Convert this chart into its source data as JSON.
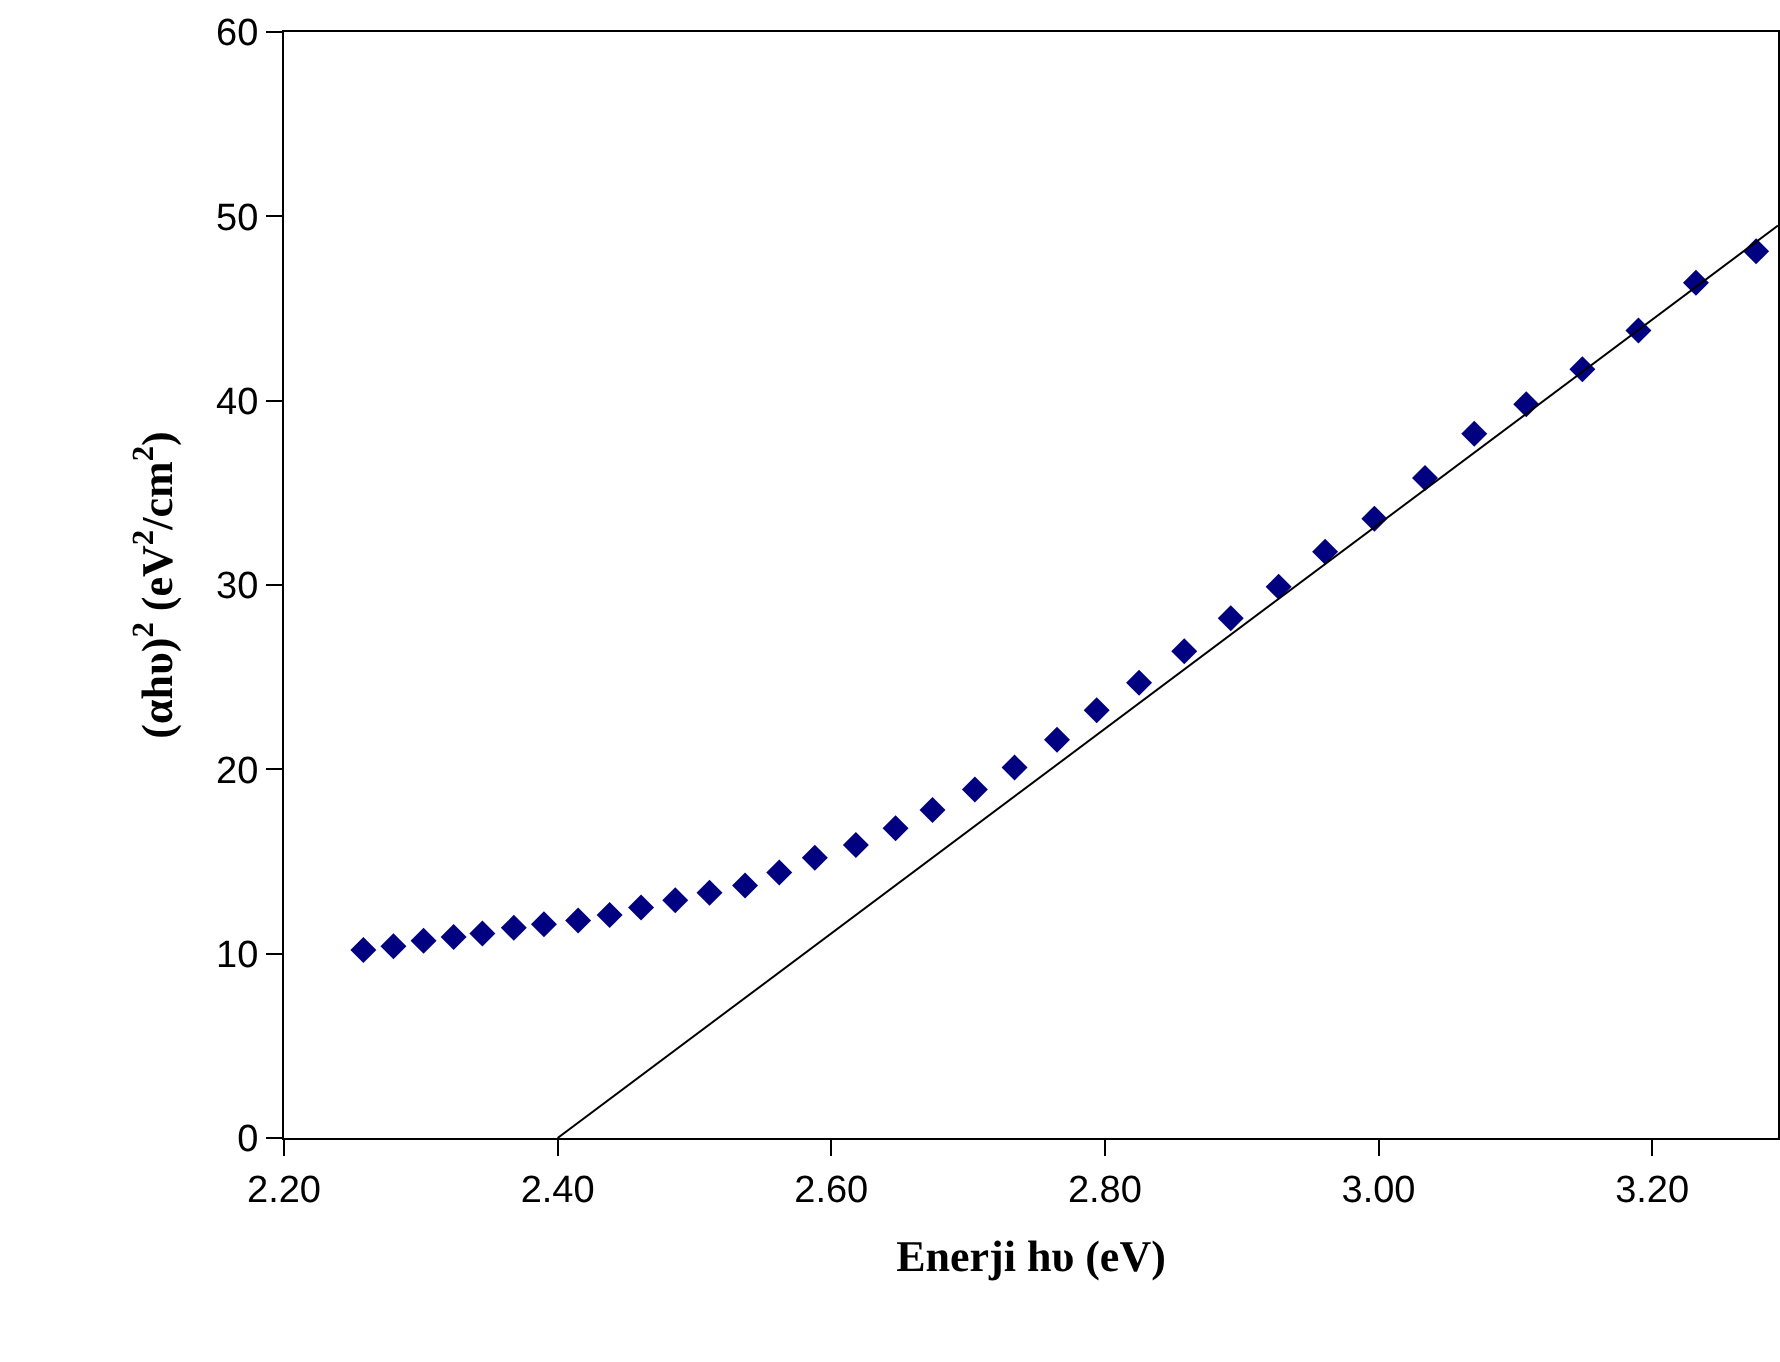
{
  "chart_data": {
    "type": "scatter",
    "xlabel": "Enerji hυ (eV)",
    "ylabel": "(αhυ)$^{2}$ (eV$^{2}$/cm$^{2}$)",
    "xlim": [
      2.2,
      3.292
    ],
    "xticks": [
      {
        "value": 2.2,
        "label": "2.20"
      },
      {
        "value": 2.4,
        "label": "2.40"
      },
      {
        "value": 2.6,
        "label": "2.60"
      },
      {
        "value": 2.8,
        "label": "2.80"
      },
      {
        "value": 3.0,
        "label": "3.00"
      },
      {
        "value": 3.2,
        "label": "3.20"
      }
    ],
    "ylim": [
      0,
      60
    ],
    "yticks": [
      0,
      10,
      20,
      30,
      40,
      50,
      60
    ],
    "grid": false,
    "legend": false,
    "series": [
      {
        "marker": "diamond",
        "color": "#000080",
        "x": [
          2.258,
          2.28,
          2.302,
          2.324,
          2.345,
          2.368,
          2.39,
          2.415,
          2.438,
          2.461,
          2.486,
          2.511,
          2.537,
          2.562,
          2.588,
          2.618,
          2.647,
          2.674,
          2.705,
          2.734,
          2.765,
          2.794,
          2.825,
          2.858,
          2.892,
          2.927,
          2.961,
          2.997,
          3.034,
          3.07,
          3.108,
          3.149,
          3.19,
          3.232,
          3.276
        ],
        "values": [
          10.2,
          10.4,
          10.7,
          10.9,
          11.1,
          11.4,
          11.6,
          11.8,
          12.1,
          12.5,
          12.9,
          13.3,
          13.7,
          14.4,
          15.2,
          15.9,
          16.8,
          17.8,
          18.9,
          20.1,
          21.6,
          23.2,
          24.7,
          26.4,
          28.2,
          29.9,
          31.8,
          33.6,
          35.8,
          38.2,
          39.8,
          41.7,
          43.8,
          46.4,
          48.1
        ]
      },
      {
        "type": "line",
        "color": "#000000",
        "x": [
          2.4,
          3.292
        ],
        "values": [
          0,
          49.5
        ]
      }
    ]
  }
}
